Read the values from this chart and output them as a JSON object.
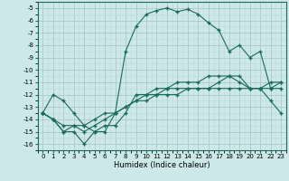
{
  "xlabel": "Humidex (Indice chaleur)",
  "x": [
    0,
    1,
    2,
    3,
    4,
    5,
    6,
    7,
    8,
    9,
    10,
    11,
    12,
    13,
    14,
    15,
    16,
    17,
    18,
    19,
    20,
    21,
    22,
    23
  ],
  "line1": [
    -13.5,
    -12.0,
    -12.5,
    -13.5,
    -14.5,
    -15.0,
    -15.0,
    -13.5,
    -8.5,
    -6.5,
    -5.5,
    -5.2,
    -5.0,
    -5.3,
    -5.1,
    -5.5,
    -6.2,
    -6.8,
    -8.5,
    -8.0,
    -9.0,
    -8.5,
    -11.5,
    -11.0
  ],
  "line2": [
    -13.5,
    -14.0,
    -15.0,
    -15.0,
    -16.0,
    -15.0,
    -14.5,
    -14.5,
    -13.5,
    -12.0,
    -12.0,
    -12.0,
    -11.5,
    -11.5,
    -11.5,
    -11.5,
    -11.5,
    -11.0,
    -10.5,
    -10.5,
    -11.5,
    -11.5,
    -12.5,
    -13.5
  ],
  "line3": [
    -13.5,
    -14.0,
    -15.0,
    -14.5,
    -15.0,
    -14.5,
    -14.0,
    -13.5,
    -13.0,
    -12.5,
    -12.0,
    -11.5,
    -11.5,
    -11.0,
    -11.0,
    -11.0,
    -10.5,
    -10.5,
    -10.5,
    -11.0,
    -11.5,
    -11.5,
    -11.0,
    -11.0
  ],
  "line4": [
    -13.5,
    -14.0,
    -14.5,
    -14.5,
    -14.5,
    -14.0,
    -13.5,
    -13.5,
    -13.0,
    -12.5,
    -12.5,
    -12.0,
    -12.0,
    -12.0,
    -11.5,
    -11.5,
    -11.5,
    -11.5,
    -11.5,
    -11.5,
    -11.5,
    -11.5,
    -11.5,
    -11.5
  ],
  "bg_color": "#cce8e8",
  "grid_major_color": "#adc8c8",
  "grid_minor_color": "#c0d8d8",
  "line_color": "#1a6b5a",
  "marker": "+",
  "ylim": [
    -16.5,
    -4.5
  ],
  "xlim": [
    -0.5,
    23.5
  ],
  "yticks": [
    -16,
    -15,
    -14,
    -13,
    -12,
    -11,
    -10,
    -9,
    -8,
    -7,
    -6,
    -5
  ],
  "xticks": [
    0,
    1,
    2,
    3,
    4,
    5,
    6,
    7,
    8,
    9,
    10,
    11,
    12,
    13,
    14,
    15,
    16,
    17,
    18,
    19,
    20,
    21,
    22,
    23
  ],
  "tick_fontsize": 5.0,
  "xlabel_fontsize": 6.0
}
